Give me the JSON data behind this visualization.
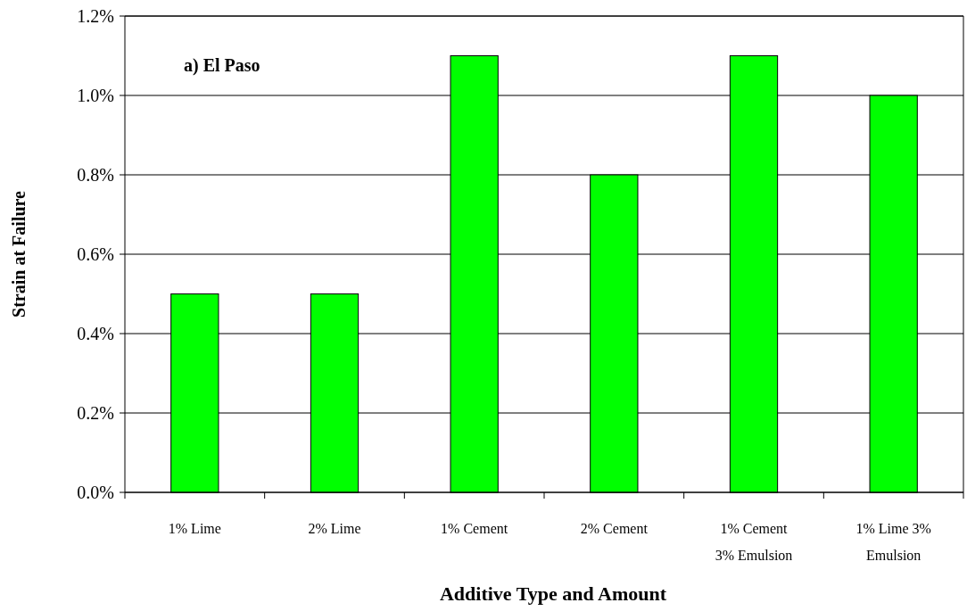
{
  "chart_data": {
    "type": "bar",
    "title": "a) El Paso",
    "xlabel": "Additive Type and Amount",
    "ylabel": "Strain at Failure",
    "categories": [
      "1% Lime",
      "2% Lime",
      "1% Cement",
      "2% Cement",
      "1% Cement 3% Emulsion",
      "1% Lime 3% Emulsion"
    ],
    "values": [
      0.5,
      0.5,
      1.1,
      0.8,
      1.1,
      1.0
    ],
    "color": "#00ff00",
    "ylim": [
      0,
      1.2
    ],
    "yticks": [
      {
        "value": 0,
        "label": "0.0%"
      },
      {
        "value": 0.2,
        "label": "0.2%"
      },
      {
        "value": 0.4,
        "label": "0.4%"
      },
      {
        "value": 0.6,
        "label": "0.6%"
      },
      {
        "value": 0.8,
        "label": "0.8%"
      },
      {
        "value": 1.0,
        "label": "1.0%"
      },
      {
        "value": 1.2,
        "label": "1.2%"
      }
    ],
    "grid": "y"
  }
}
